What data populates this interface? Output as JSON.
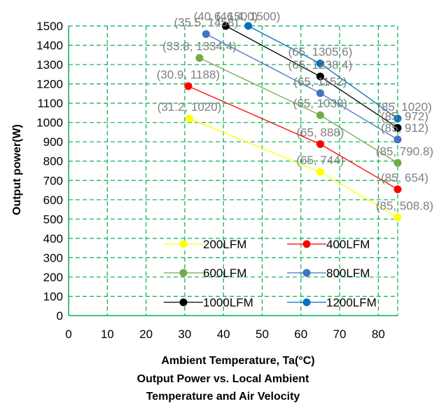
{
  "chart_data": {
    "type": "line",
    "title": "Output Power vs. Local Ambient Temperature and Air Velocity",
    "title_lines": [
      "Output Power vs. Local Ambient",
      "Temperature and Air Velocity"
    ],
    "xlabel": "Ambient Temperature, Ta(°C)",
    "ylabel": "Output power(W)",
    "xlim": [
      0,
      85
    ],
    "ylim": [
      0,
      1500
    ],
    "xticks": [
      0,
      10,
      20,
      30,
      40,
      50,
      60,
      70,
      80
    ],
    "yticks": [
      0,
      100,
      200,
      300,
      400,
      500,
      600,
      700,
      800,
      900,
      1000,
      1100,
      1200,
      1300,
      1400,
      1500
    ],
    "grid": true,
    "grid_color": "#00b050",
    "legend_position": "inside-bottom",
    "series": [
      {
        "name": "200LFM",
        "color": "#ffff00",
        "points": [
          {
            "x": 31.2,
            "y": 1020
          },
          {
            "x": 65,
            "y": 744
          },
          {
            "x": 85,
            "y": 508.8
          }
        ],
        "labels": [
          "(31.2, 1020)",
          "(65, 744)",
          "(85, 508.8)"
        ]
      },
      {
        "name": "400LFM",
        "color": "#ff0000",
        "points": [
          {
            "x": 30.9,
            "y": 1188
          },
          {
            "x": 65,
            "y": 888
          },
          {
            "x": 85,
            "y": 654
          }
        ],
        "labels": [
          "(30.9, 1188)",
          "(65, 888)",
          "(85, 654)"
        ]
      },
      {
        "name": "600LFM",
        "color": "#70ad47",
        "points": [
          {
            "x": 33.8,
            "y": 1334.4
          },
          {
            "x": 65,
            "y": 1038
          },
          {
            "x": 85,
            "y": 790.8
          }
        ],
        "labels": [
          "(33.8, 1334.4)",
          "(65, 1038)",
          "(85, 790.8)"
        ]
      },
      {
        "name": "800LFM",
        "color": "#4472c4",
        "points": [
          {
            "x": 35.5,
            "y": 1458
          },
          {
            "x": 65,
            "y": 1152
          },
          {
            "x": 85,
            "y": 912
          }
        ],
        "labels": [
          "(35.5, 1458)",
          "(65, 1152)",
          "(85, 912)"
        ]
      },
      {
        "name": "1000LFM",
        "color": "#000000",
        "points": [
          {
            "x": 40.6,
            "y": 1500
          },
          {
            "x": 65,
            "y": 1238.4
          },
          {
            "x": 85,
            "y": 972
          }
        ],
        "labels": [
          "(40.6, 1500)",
          "(65, 1238.4)",
          "(85, 972)"
        ]
      },
      {
        "name": "1200LFM",
        "color": "#0070c0",
        "points": [
          {
            "x": 46.4,
            "y": 1500
          },
          {
            "x": 65,
            "y": 1305.6
          },
          {
            "x": 85,
            "y": 1020
          }
        ],
        "labels": [
          "(46.4, 1500)",
          "(65, 1305.6)",
          "(85, 1020)"
        ]
      }
    ]
  }
}
